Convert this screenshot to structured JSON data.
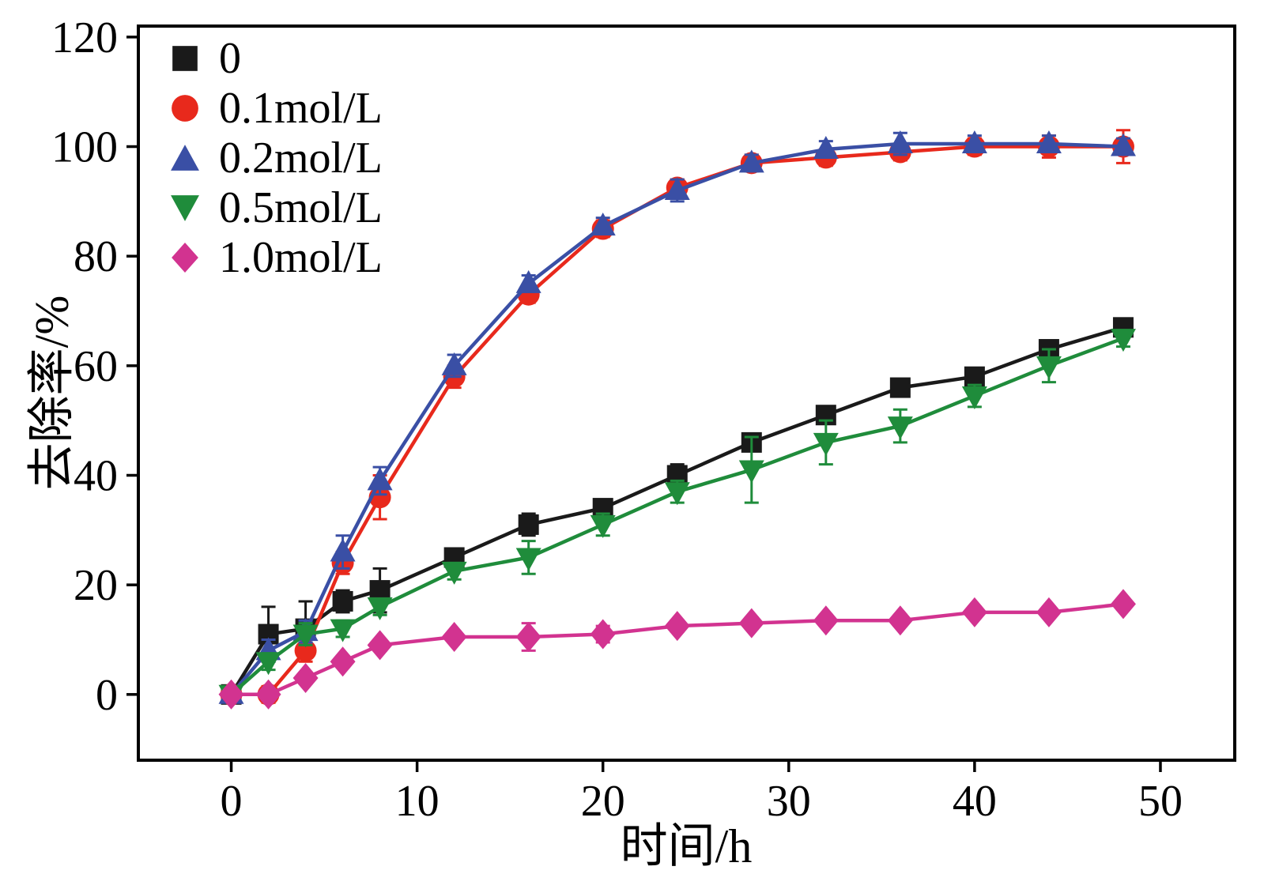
{
  "chart_data": {
    "type": "line",
    "title": "",
    "xlabel": "时间/h",
    "ylabel": "去除率/%",
    "xlim": [
      -5,
      54
    ],
    "ylim": [
      -12,
      122
    ],
    "x_ticks": [
      0,
      10,
      20,
      30,
      40,
      50
    ],
    "y_ticks": [
      0,
      20,
      40,
      60,
      80,
      100,
      120
    ],
    "grid": false,
    "legend_position": "top-left",
    "x": [
      0,
      2,
      4,
      6,
      8,
      12,
      16,
      20,
      24,
      28,
      32,
      36,
      40,
      44,
      48
    ],
    "series": [
      {
        "name": "0",
        "color": "#1a1a1a",
        "marker": "square",
        "values": [
          0,
          11,
          12,
          17,
          19,
          25,
          31,
          34,
          40,
          46,
          51,
          56,
          58,
          63,
          67
        ],
        "errors": [
          1,
          5,
          5,
          2,
          4,
          1.5,
          2,
          1.5,
          2,
          1.5,
          1.5,
          1.5,
          1.5,
          1.5,
          1.5
        ]
      },
      {
        "name": "0.1mol/L",
        "color": "#e8291c",
        "marker": "circle",
        "values": [
          0,
          0,
          8,
          24,
          36,
          58,
          73,
          85,
          92.5,
          97,
          98,
          99,
          100,
          100,
          100
        ],
        "errors": [
          1,
          1.5,
          2,
          2,
          4,
          2,
          1.5,
          1.5,
          1.5,
          1.5,
          1.5,
          1.5,
          1.5,
          2,
          3
        ]
      },
      {
        "name": "0.2mol/L",
        "color": "#3a4fa5",
        "marker": "triangle-up",
        "values": [
          0,
          8,
          11.5,
          26,
          39,
          60,
          75,
          85.5,
          92,
          97,
          99.5,
          100.5,
          100.5,
          100.5,
          100
        ],
        "errors": [
          1,
          2,
          2,
          3,
          2.5,
          2,
          1.5,
          1.5,
          2,
          1.5,
          1.5,
          2,
          1.5,
          1.5,
          1.5
        ]
      },
      {
        "name": "0.5mol/L",
        "color": "#1f8c3b",
        "marker": "triangle-down",
        "values": [
          0,
          6,
          11,
          12,
          16,
          22.5,
          25,
          31,
          37,
          41,
          46,
          49,
          54.5,
          60,
          65
        ],
        "errors": [
          1,
          1.5,
          2,
          1.5,
          1.5,
          1.5,
          3,
          2,
          2,
          6,
          4,
          3,
          2,
          3,
          1.5
        ]
      },
      {
        "name": "1.0mol/L",
        "color": "#d23390",
        "marker": "diamond",
        "values": [
          0,
          0,
          3,
          6,
          9,
          10.5,
          10.5,
          11,
          12.5,
          13,
          13.5,
          13.5,
          15,
          15,
          16.5
        ],
        "errors": [
          0.5,
          1,
          1,
          1,
          1,
          1,
          2.5,
          1.5,
          1,
          1,
          1,
          1,
          1,
          1,
          1
        ]
      }
    ]
  }
}
